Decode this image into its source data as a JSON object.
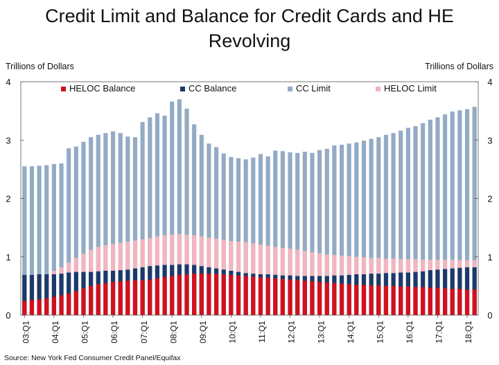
{
  "chart_data": {
    "type": "bar",
    "title_lines": [
      "Credit Limit and Balance for Credit Cards and HE",
      "Revolving"
    ],
    "ylabel_left": "Trillions of Dollars",
    "ylabel_right": "Trillions of Dollars",
    "ylim": [
      0,
      4
    ],
    "yticks": [
      "0",
      "1",
      "2",
      "3",
      "4"
    ],
    "source": "Source: New York Fed Consumer Credit Panel/Equifax",
    "grid": false,
    "legend_position": "top",
    "x_tick_labels": [
      "03:Q1",
      "04:Q1",
      "05:Q1",
      "06:Q1",
      "07:Q1",
      "08:Q1",
      "09:Q1",
      "10:Q1",
      "11:Q1",
      "12:Q1",
      "13:Q1",
      "14:Q1",
      "15:Q1",
      "16:Q1",
      "17:Q1",
      "18:Q1"
    ],
    "categories": [
      "03:Q1",
      "03:Q2",
      "03:Q3",
      "03:Q4",
      "04:Q1",
      "04:Q2",
      "04:Q3",
      "04:Q4",
      "05:Q1",
      "05:Q2",
      "05:Q3",
      "05:Q4",
      "06:Q1",
      "06:Q2",
      "06:Q3",
      "06:Q4",
      "07:Q1",
      "07:Q2",
      "07:Q3",
      "07:Q4",
      "08:Q1",
      "08:Q2",
      "08:Q3",
      "08:Q4",
      "09:Q1",
      "09:Q2",
      "09:Q3",
      "09:Q4",
      "10:Q1",
      "10:Q2",
      "10:Q3",
      "10:Q4",
      "11:Q1",
      "11:Q2",
      "11:Q3",
      "11:Q4",
      "12:Q1",
      "12:Q2",
      "12:Q3",
      "12:Q4",
      "13:Q1",
      "13:Q2",
      "13:Q3",
      "13:Q4",
      "14:Q1",
      "14:Q2",
      "14:Q3",
      "14:Q4",
      "15:Q1",
      "15:Q2",
      "15:Q3",
      "15:Q4",
      "16:Q1",
      "16:Q2",
      "16:Q3",
      "16:Q4",
      "17:Q1",
      "17:Q2",
      "17:Q3",
      "17:Q4",
      "18:Q1",
      "18:Q2"
    ],
    "series": [
      {
        "name": "CC Limit",
        "color": "#93abc4",
        "values": [
          2.55,
          2.55,
          2.56,
          2.57,
          2.59,
          2.6,
          2.86,
          2.89,
          2.97,
          3.05,
          3.09,
          3.12,
          3.15,
          3.12,
          3.06,
          3.05,
          3.31,
          3.39,
          3.46,
          3.42,
          3.66,
          3.7,
          3.54,
          3.27,
          3.09,
          2.94,
          2.88,
          2.77,
          2.71,
          2.69,
          2.67,
          2.7,
          2.76,
          2.72,
          2.82,
          2.81,
          2.79,
          2.78,
          2.8,
          2.78,
          2.83,
          2.85,
          2.91,
          2.92,
          2.94,
          2.96,
          2.99,
          3.02,
          3.05,
          3.09,
          3.12,
          3.16,
          3.21,
          3.24,
          3.29,
          3.35,
          3.39,
          3.44,
          3.49,
          3.51,
          3.53,
          3.57
        ]
      },
      {
        "name": "HELOC Limit",
        "color": "#f2b5bf",
        "values": [
          0.6,
          0.62,
          0.66,
          0.7,
          0.76,
          0.82,
          0.9,
          0.98,
          1.05,
          1.12,
          1.17,
          1.2,
          1.22,
          1.24,
          1.26,
          1.28,
          1.3,
          1.32,
          1.35,
          1.37,
          1.38,
          1.39,
          1.38,
          1.37,
          1.35,
          1.33,
          1.31,
          1.29,
          1.27,
          1.26,
          1.25,
          1.23,
          1.21,
          1.19,
          1.17,
          1.15,
          1.14,
          1.12,
          1.1,
          1.08,
          1.06,
          1.04,
          1.03,
          1.02,
          1.01,
          1.0,
          0.99,
          0.98,
          0.98,
          0.97,
          0.97,
          0.96,
          0.96,
          0.96,
          0.95,
          0.95,
          0.95,
          0.95,
          0.95,
          0.94,
          0.94,
          0.94
        ]
      },
      {
        "name": "CC Balance",
        "color": "#1b3a6b",
        "values": [
          0.69,
          0.69,
          0.7,
          0.7,
          0.7,
          0.71,
          0.73,
          0.74,
          0.74,
          0.74,
          0.75,
          0.76,
          0.76,
          0.77,
          0.78,
          0.8,
          0.82,
          0.84,
          0.85,
          0.86,
          0.86,
          0.87,
          0.87,
          0.86,
          0.84,
          0.82,
          0.8,
          0.78,
          0.76,
          0.74,
          0.72,
          0.71,
          0.7,
          0.7,
          0.69,
          0.68,
          0.68,
          0.67,
          0.67,
          0.67,
          0.67,
          0.67,
          0.68,
          0.68,
          0.69,
          0.7,
          0.7,
          0.71,
          0.71,
          0.72,
          0.72,
          0.73,
          0.73,
          0.74,
          0.75,
          0.77,
          0.78,
          0.79,
          0.8,
          0.81,
          0.82,
          0.82
        ]
      },
      {
        "name": "HELOC Balance",
        "color": "#d2101e",
        "values": [
          0.24,
          0.26,
          0.27,
          0.29,
          0.31,
          0.34,
          0.37,
          0.41,
          0.46,
          0.5,
          0.53,
          0.55,
          0.57,
          0.58,
          0.59,
          0.6,
          0.6,
          0.61,
          0.63,
          0.65,
          0.67,
          0.69,
          0.7,
          0.71,
          0.71,
          0.71,
          0.71,
          0.7,
          0.69,
          0.68,
          0.67,
          0.66,
          0.65,
          0.64,
          0.63,
          0.62,
          0.61,
          0.6,
          0.59,
          0.58,
          0.57,
          0.56,
          0.55,
          0.54,
          0.53,
          0.52,
          0.52,
          0.51,
          0.51,
          0.5,
          0.5,
          0.49,
          0.49,
          0.48,
          0.48,
          0.47,
          0.47,
          0.46,
          0.45,
          0.45,
          0.44,
          0.44
        ]
      }
    ],
    "legend_order": [
      "HELOC Balance",
      "CC Balance",
      "CC Limit",
      "HELOC Limit"
    ]
  }
}
